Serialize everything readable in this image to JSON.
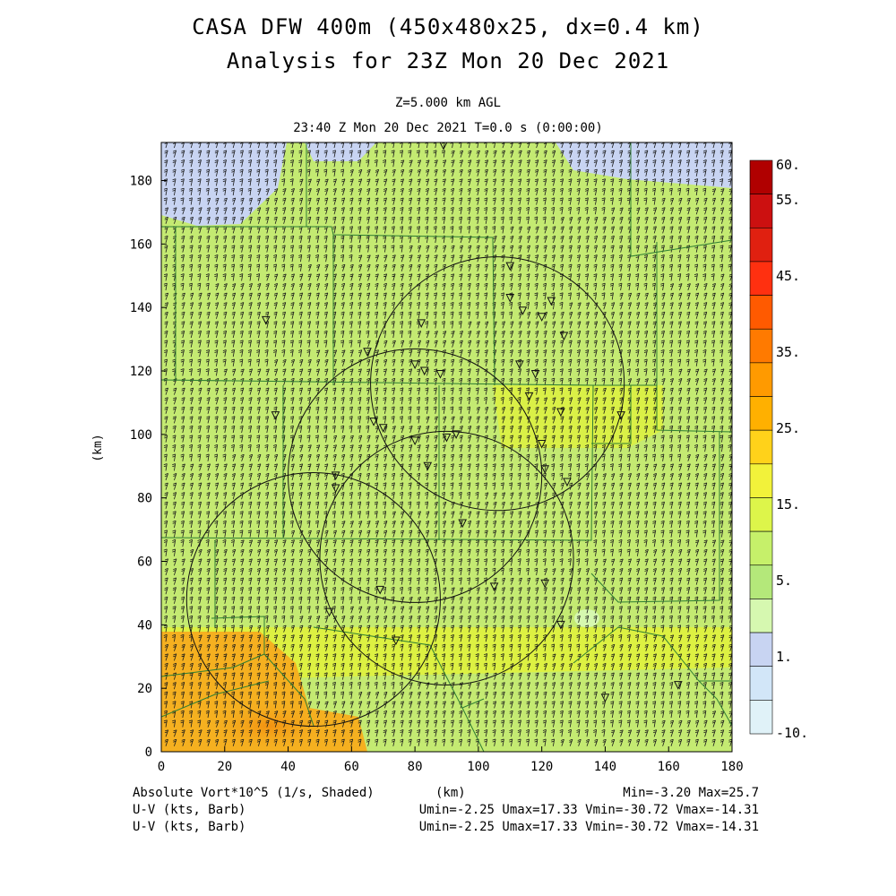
{
  "header": {
    "title_line1": "CASA DFW 400m (450x480x25, dx=0.4 km)",
    "title_line2": "Analysis for 23Z Mon 20 Dec 2021",
    "level": "Z=5.000 km AGL",
    "time": "23:40 Z Mon 20 Dec 2021    T=0.0 s (0:00:00)"
  },
  "axes": {
    "x_ticks": [
      "0",
      "20",
      "40",
      "60",
      "80",
      "100",
      "120",
      "140",
      "160",
      "180"
    ],
    "y_ticks": [
      "0",
      "20",
      "40",
      "60",
      "80",
      "100",
      "120",
      "140",
      "160",
      "180"
    ],
    "x_unit": "(km)",
    "y_unit": "(km)",
    "x_range": [
      0,
      180
    ],
    "y_range": [
      0,
      192
    ]
  },
  "colorbar": {
    "labels": [
      "60.",
      "55.",
      "45.",
      "35.",
      "25.",
      "15.",
      "5.",
      "1.",
      "-10."
    ],
    "colors": [
      "#b00000",
      "#cc1010",
      "#e02010",
      "#ff3010",
      "#ff5a00",
      "#ff7a00",
      "#ff9a00",
      "#ffb000",
      "#ffd21a",
      "#f2f23a",
      "#ddf54a",
      "#c6f06a",
      "#b4e87a",
      "#d6f8b0",
      "#c8d4f2",
      "#d2e6f8",
      "#e0f2f8"
    ]
  },
  "footer": {
    "field_label": "Absolute Vort*10^5 (1/s, Shaded)",
    "units_label": "(km)",
    "minmax": "Min=-3.20 Max=25.7",
    "wind1_label": "U-V (kts, Barb)",
    "wind1_stats": "Umin=-2.25 Umax=17.33 Vmin=-30.72 Vmax=-14.31",
    "wind2_label": "U-V (kts, Barb)",
    "wind2_stats": "Umin=-2.25 Umax=17.33 Vmin=-30.72 Vmax=-14.31"
  },
  "colors": {
    "background_field": "#c4ea72",
    "low_vorticity": "#c8d4f2",
    "high_vorticity": "#f5b020",
    "county_lines": "#2e7d32"
  },
  "radars": [
    {
      "cx": 48,
      "cy": 48
    },
    {
      "cx": 80,
      "cy": 87
    },
    {
      "cx": 90,
      "cy": 61
    },
    {
      "cx": 106,
      "cy": 116
    }
  ],
  "radar_radius_km": 40
}
